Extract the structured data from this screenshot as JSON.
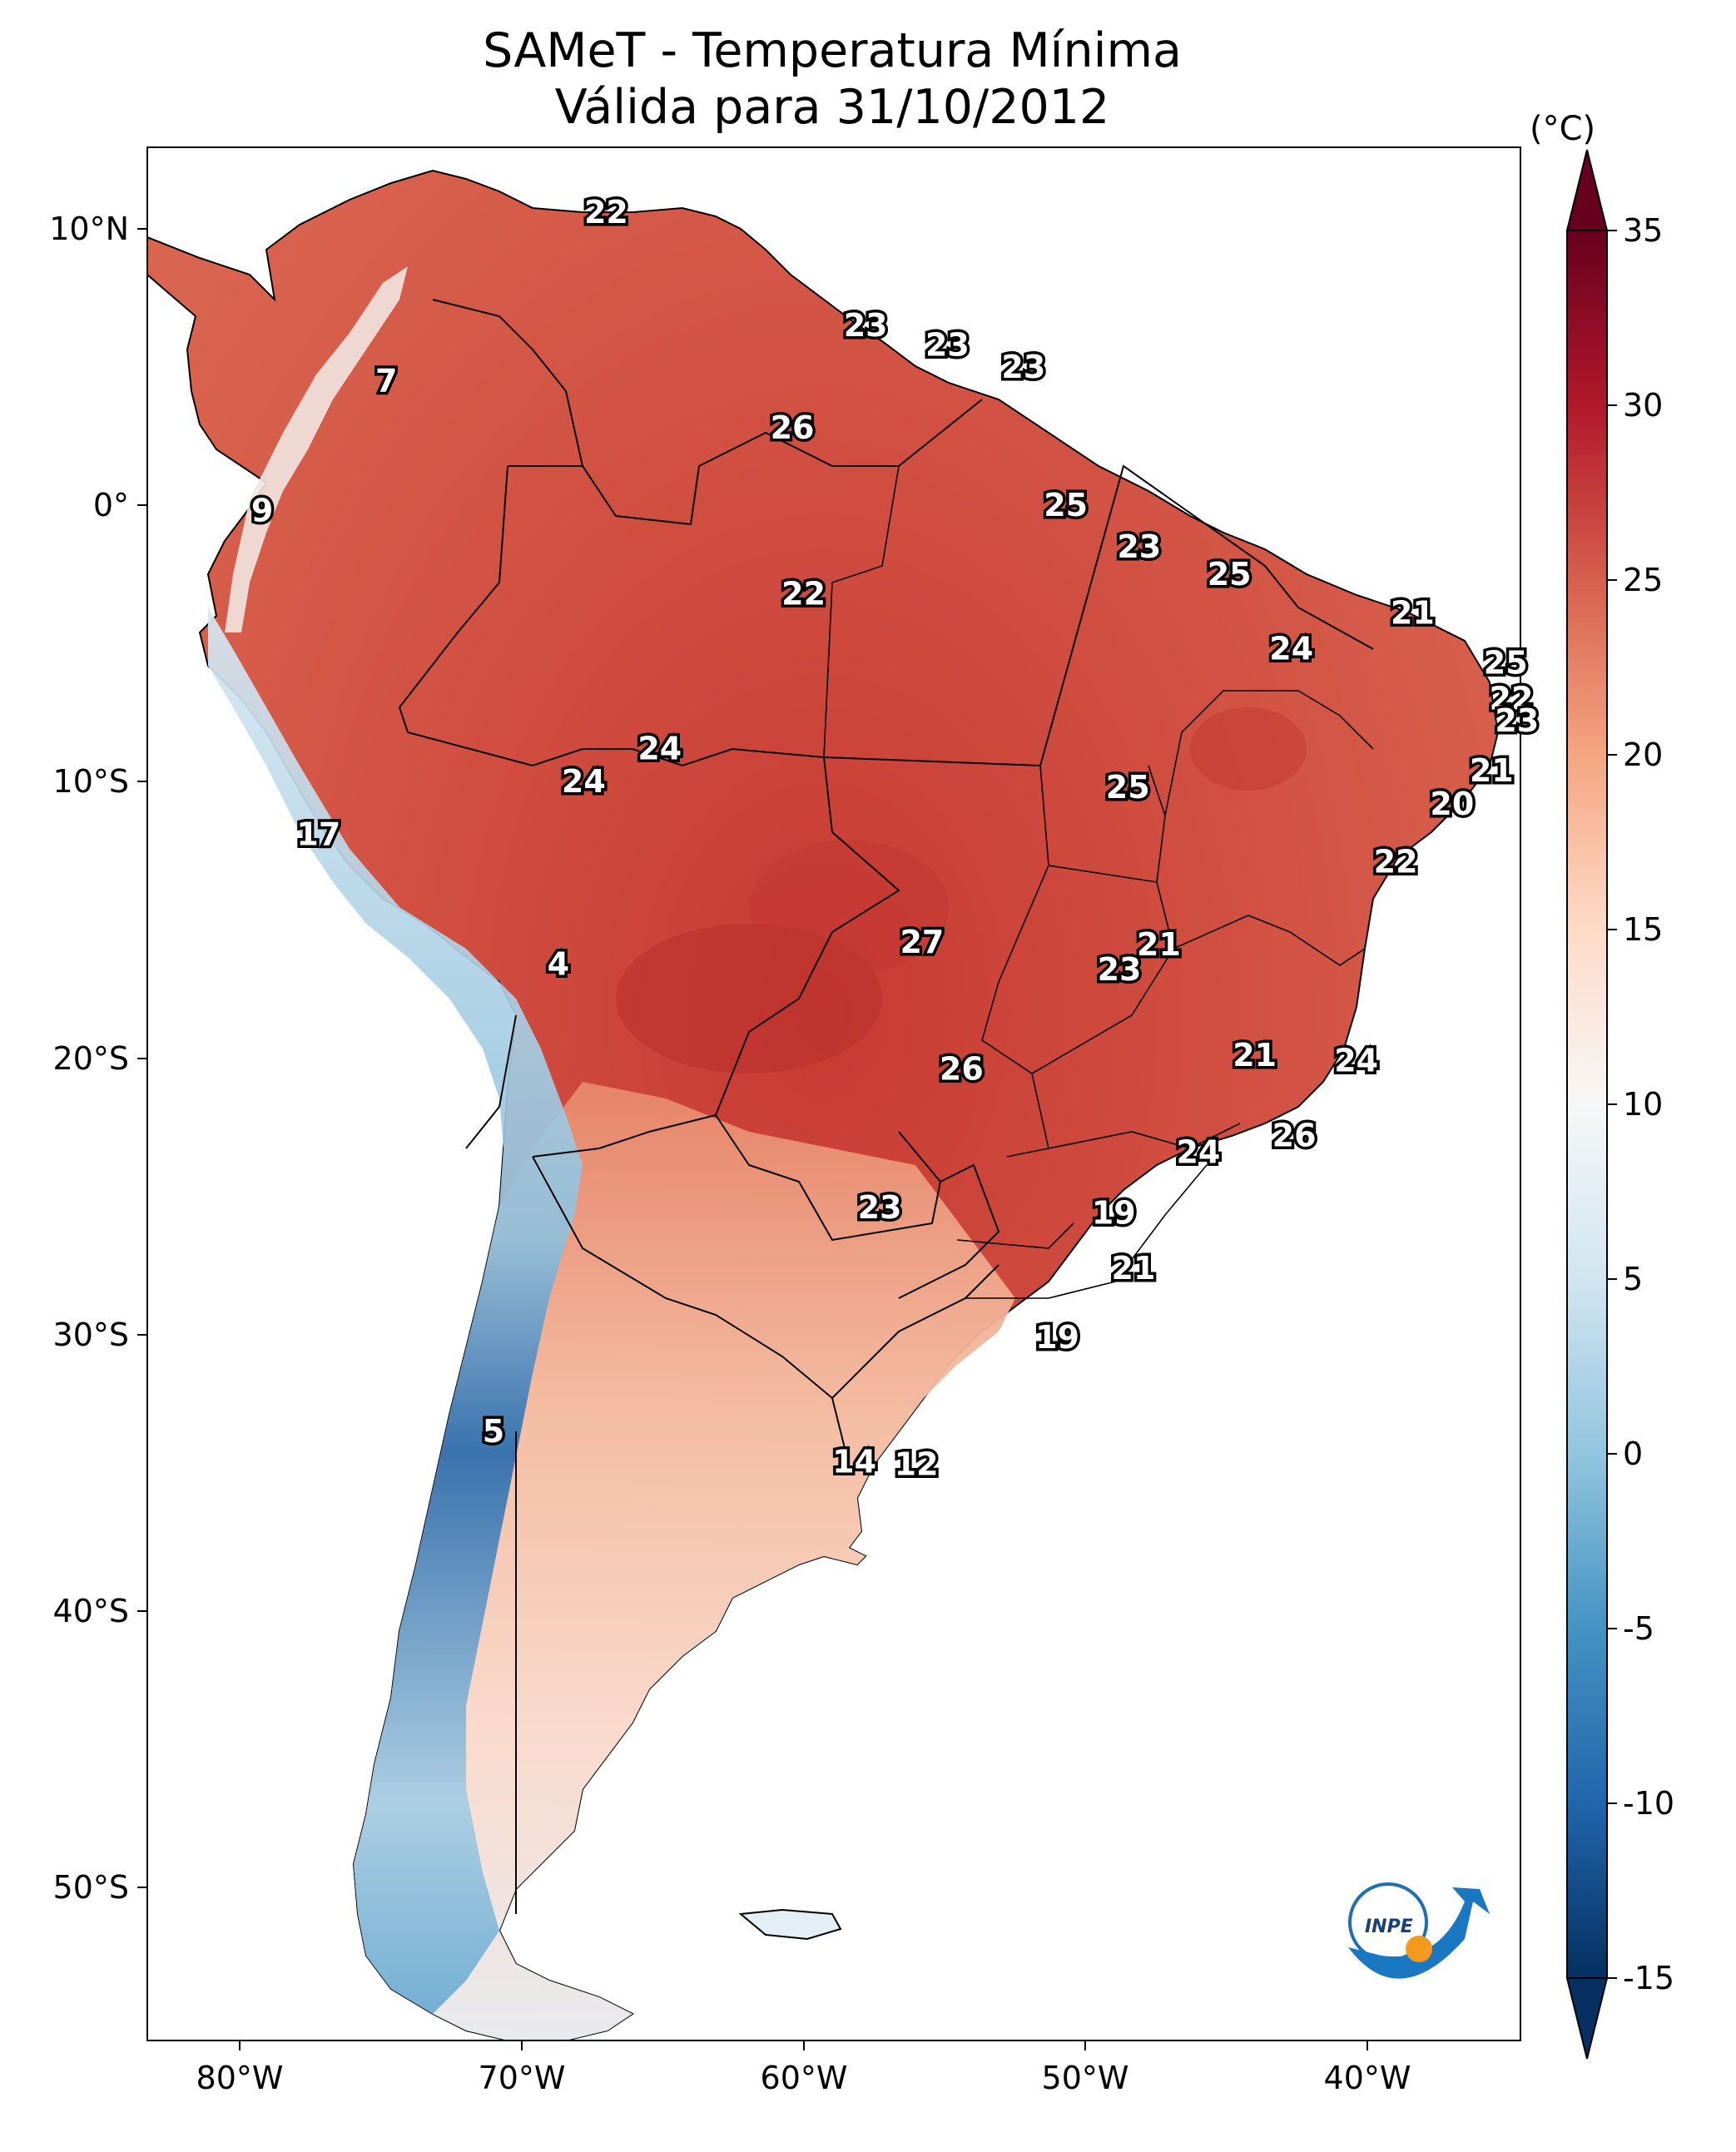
{
  "title": "SAMeT - Temperatura Mínima",
  "subtitle": "Válida para 31/10/2012",
  "colorbar": {
    "unit": "(°C)",
    "ticks": [
      "35",
      "30",
      "25",
      "20",
      "15",
      "10",
      "5",
      "0",
      "-5",
      "-10",
      "-15"
    ],
    "range": [
      -15,
      35
    ],
    "colors": [
      "#053061",
      "#2166ac",
      "#4393c3",
      "#92c5de",
      "#d1e5f0",
      "#f7f7f7",
      "#fddbc7",
      "#f4a582",
      "#d6604d",
      "#b2182b",
      "#67001f"
    ]
  },
  "axes": {
    "lat_labels": [
      "10°N",
      "0°",
      "10°S",
      "20°S",
      "30°S",
      "40°S",
      "50°S"
    ],
    "lon_labels": [
      "80°W",
      "70°W",
      "60°W",
      "50°W",
      "40°W"
    ]
  },
  "temperature_labels": [
    {
      "value": "22",
      "lon": -67.0,
      "lat": 10.6
    },
    {
      "value": "7",
      "lon": -74.8,
      "lat": 4.5
    },
    {
      "value": "9",
      "lon": -79.2,
      "lat": -0.2
    },
    {
      "value": "23",
      "lon": -57.8,
      "lat": 6.5
    },
    {
      "value": "23",
      "lon": -54.9,
      "lat": 5.8
    },
    {
      "value": "23",
      "lon": -52.2,
      "lat": 5.0
    },
    {
      "value": "26",
      "lon": -60.4,
      "lat": 2.8
    },
    {
      "value": "25",
      "lon": -50.7,
      "lat": 0.0
    },
    {
      "value": "23",
      "lon": -48.1,
      "lat": -1.5
    },
    {
      "value": "25",
      "lon": -44.9,
      "lat": -2.5
    },
    {
      "value": "22",
      "lon": -60.0,
      "lat": -3.2
    },
    {
      "value": "21",
      "lon": -38.4,
      "lat": -3.9
    },
    {
      "value": "24",
      "lon": -42.7,
      "lat": -5.2
    },
    {
      "value": "25",
      "lon": -35.1,
      "lat": -5.7
    },
    {
      "value": "22",
      "lon": -34.9,
      "lat": -7.0
    },
    {
      "value": "23",
      "lon": -34.7,
      "lat": -7.8
    },
    {
      "value": "21",
      "lon": -35.6,
      "lat": -9.6
    },
    {
      "value": "20",
      "lon": -37.0,
      "lat": -10.8
    },
    {
      "value": "22",
      "lon": -39.0,
      "lat": -12.9
    },
    {
      "value": "24",
      "lon": -65.1,
      "lat": -8.8
    },
    {
      "value": "24",
      "lon": -67.8,
      "lat": -10.0
    },
    {
      "value": "25",
      "lon": -48.5,
      "lat": -10.2
    },
    {
      "value": "17",
      "lon": -77.2,
      "lat": -11.9
    },
    {
      "value": "27",
      "lon": -55.8,
      "lat": -15.8
    },
    {
      "value": "21",
      "lon": -47.4,
      "lat": -15.9
    },
    {
      "value": "23",
      "lon": -48.8,
      "lat": -16.8
    },
    {
      "value": "4",
      "lon": -68.7,
      "lat": -16.6
    },
    {
      "value": "21",
      "lon": -44.0,
      "lat": -19.9
    },
    {
      "value": "24",
      "lon": -40.4,
      "lat": -20.1
    },
    {
      "value": "26",
      "lon": -54.4,
      "lat": -20.4
    },
    {
      "value": "26",
      "lon": -42.6,
      "lat": -22.8
    },
    {
      "value": "24",
      "lon": -46.0,
      "lat": -23.4
    },
    {
      "value": "23",
      "lon": -57.3,
      "lat": -25.4
    },
    {
      "value": "19",
      "lon": -49.0,
      "lat": -25.6
    },
    {
      "value": "21",
      "lon": -48.3,
      "lat": -27.6
    },
    {
      "value": "19",
      "lon": -51.0,
      "lat": -30.1
    },
    {
      "value": "5",
      "lon": -71.0,
      "lat": -33.5
    },
    {
      "value": "14",
      "lon": -58.2,
      "lat": -34.6
    },
    {
      "value": "12",
      "lon": -56.0,
      "lat": -34.7
    }
  ],
  "logo": {
    "text": "INPE"
  }
}
